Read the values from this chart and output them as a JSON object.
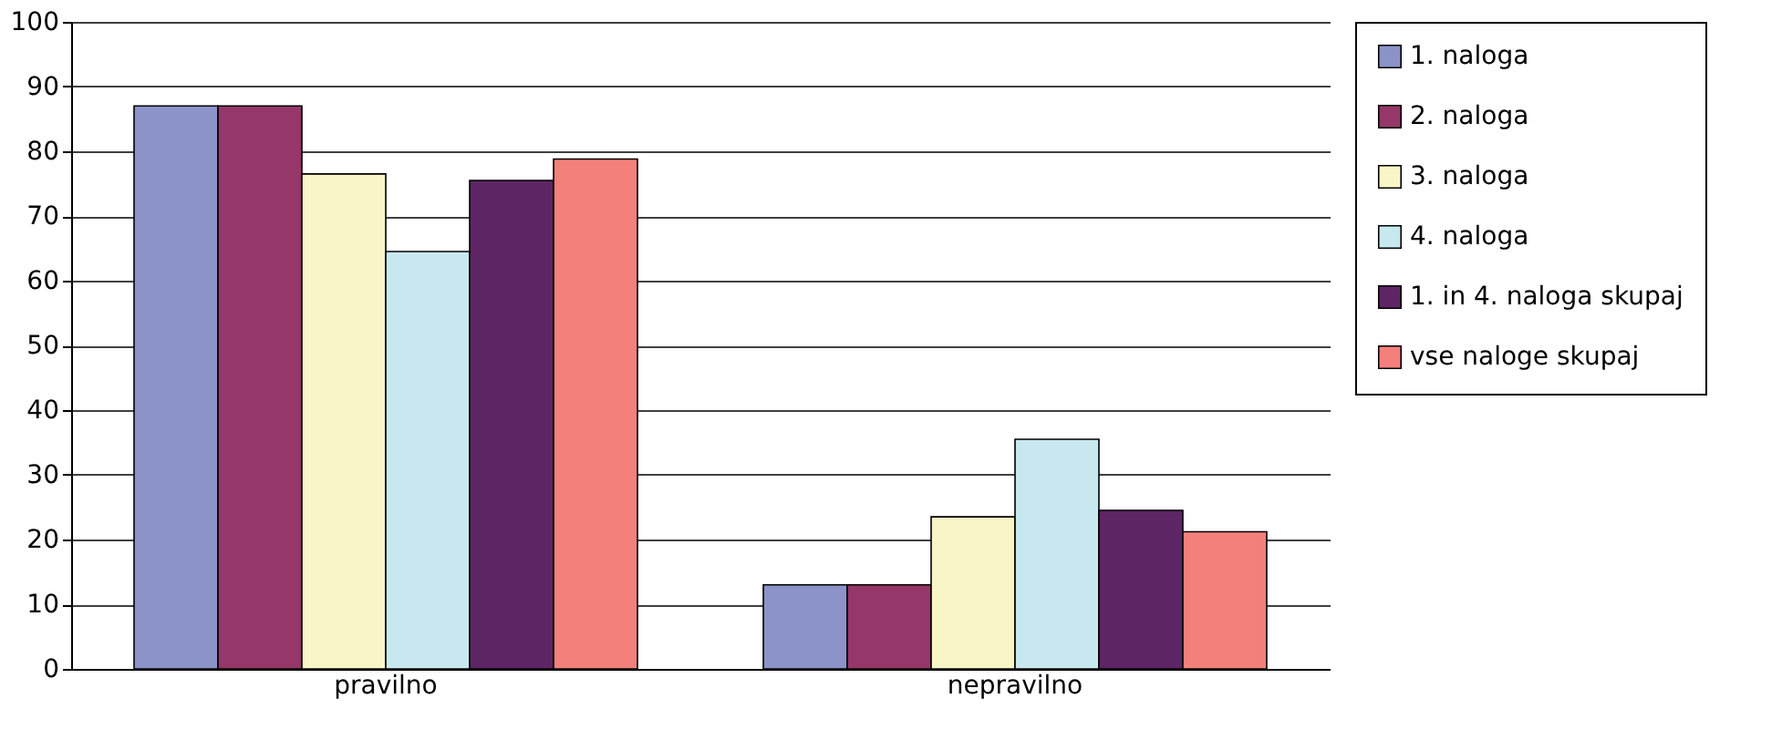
{
  "chart_data": {
    "type": "bar",
    "categories": [
      "pravilno",
      "nepravilno"
    ],
    "series": [
      {
        "name": "1. naloga",
        "color": "#8b93c9",
        "values": [
          87,
          13
        ]
      },
      {
        "name": "2. naloga",
        "color": "#953768",
        "values": [
          87,
          13
        ]
      },
      {
        "name": "3. naloga",
        "color": "#f8f6c6",
        "values": [
          76.5,
          23.5
        ]
      },
      {
        "name": "4. naloga",
        "color": "#c8e8ef",
        "values": [
          64.5,
          35.5
        ]
      },
      {
        "name": "1. in 4. naloga skupaj",
        "color": "#5e2565",
        "values": [
          75.5,
          24.5
        ]
      },
      {
        "name": "vse naloge skupaj",
        "color": "#f4807c",
        "values": [
          78.8,
          21.2
        ]
      }
    ],
    "ylim": [
      0,
      100
    ],
    "yticks": [
      0,
      10,
      20,
      30,
      40,
      50,
      60,
      70,
      80,
      90,
      100
    ],
    "grid": "y",
    "legend": "right"
  }
}
